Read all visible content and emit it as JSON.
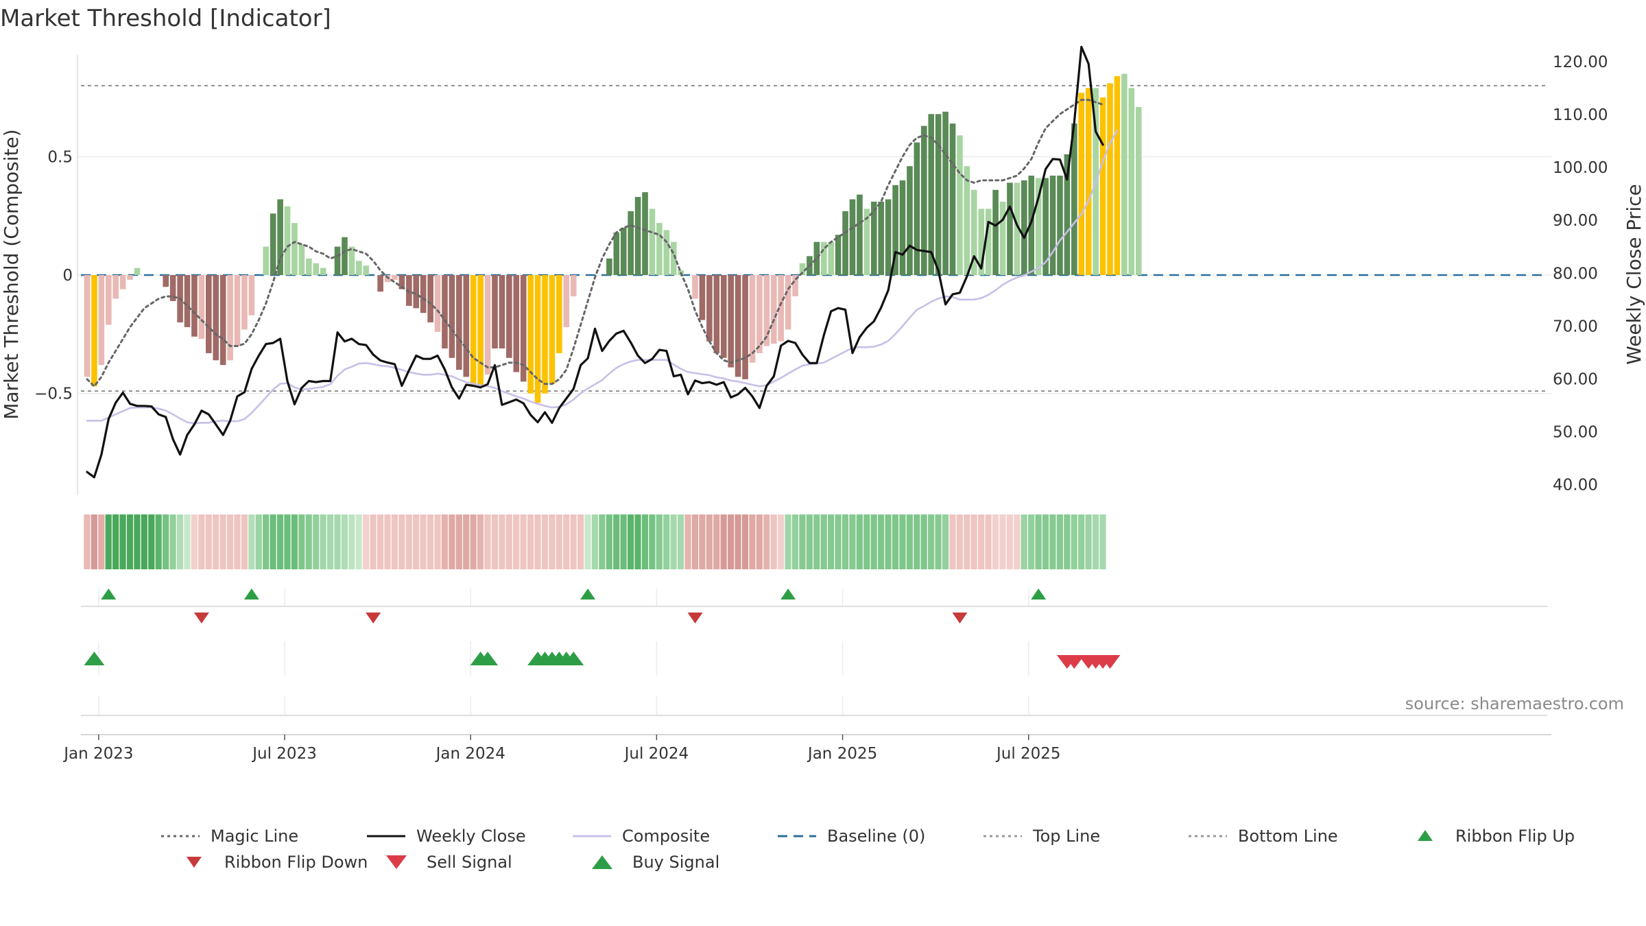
{
  "chart_data": {
    "type": "bar",
    "title": "Market Threshold [Indicator]",
    "ylabel_left": "Market Threshold (Composite)",
    "ylabel_right": "Weekly Close Price",
    "source": "source: sharemaestro.com",
    "ylim_left": [
      -0.93,
      0.93
    ],
    "ylim_right": [
      38.0,
      121.3
    ],
    "left_ticks": [
      {
        "value": 0.5,
        "label": "0.5"
      },
      {
        "value": 0,
        "label": "0"
      },
      {
        "value": -0.5,
        "label": "−0.5"
      }
    ],
    "right_ticks": [
      {
        "value": 40,
        "label": "40.00"
      },
      {
        "value": 50,
        "label": "50.00"
      },
      {
        "value": 60,
        "label": "60.00"
      },
      {
        "value": 70,
        "label": "70.00"
      },
      {
        "value": 80,
        "label": "80.00"
      },
      {
        "value": 90,
        "label": "90.00"
      },
      {
        "value": 100,
        "label": "100.00"
      },
      {
        "value": 110,
        "label": "110.00"
      },
      {
        "value": 120,
        "label": "120.00"
      }
    ],
    "x_ticks": [
      {
        "week": 2,
        "label": "Jan 2023"
      },
      {
        "week": 28,
        "label": "Jul 2023"
      },
      {
        "week": 54,
        "label": "Jan 2024"
      },
      {
        "week": 80,
        "label": "Jul 2024"
      },
      {
        "week": 106,
        "label": "Jan 2025"
      },
      {
        "week": 132,
        "label": "Jul 2025"
      }
    ],
    "top_line": 0.8,
    "bottom_line": -0.49,
    "baseline": 0,
    "bar_colors": {
      "dark_green": "#5a8a56",
      "light_green": "#a8d5a2",
      "dark_red": "#a06a66",
      "light_red": "#e9b9b5",
      "gold": "#fcc200"
    },
    "composite_bars": {
      "values": [
        -0.43,
        -0.47,
        -0.38,
        -0.21,
        -0.1,
        -0.06,
        -0.02,
        0.03,
        0,
        0,
        0,
        -0.05,
        -0.11,
        -0.2,
        -0.22,
        -0.26,
        -0.27,
        -0.33,
        -0.36,
        -0.38,
        -0.36,
        -0.3,
        -0.23,
        -0.17,
        0,
        0.12,
        0.26,
        0.32,
        0.29,
        0.22,
        0.13,
        0.07,
        0.05,
        0.03,
        0,
        0.12,
        0.16,
        0.12,
        0.06,
        0.04,
        0,
        -0.07,
        -0.03,
        -0.02,
        -0.06,
        -0.13,
        -0.14,
        -0.16,
        -0.2,
        -0.24,
        -0.31,
        -0.35,
        -0.4,
        -0.43,
        -0.47,
        -0.47,
        -0.42,
        -0.31,
        -0.31,
        -0.35,
        -0.41,
        -0.45,
        -0.5,
        -0.54,
        -0.5,
        -0.46,
        -0.33,
        -0.22,
        -0.09,
        0,
        0,
        0,
        0,
        0.07,
        0.18,
        0.2,
        0.27,
        0.33,
        0.35,
        0.28,
        0.22,
        0.19,
        0.14,
        0.02,
        0,
        -0.1,
        -0.19,
        -0.28,
        -0.33,
        -0.35,
        -0.39,
        -0.43,
        -0.44,
        -0.37,
        -0.33,
        -0.3,
        -0.29,
        -0.28,
        -0.23,
        -0.09,
        0.05,
        0.08,
        0.14,
        0.14,
        0.14,
        0.17,
        0.27,
        0.32,
        0.34,
        0.28,
        0.31,
        0.31,
        0.32,
        0.38,
        0.4,
        0.46,
        0.56,
        0.63,
        0.68,
        0.68,
        0.69,
        0.64,
        0.59,
        0.46,
        0.36,
        0.28,
        0.28,
        0.36,
        0.31,
        0.39,
        0.39,
        0.4,
        0.42,
        0.41,
        0.41,
        0.42,
        0.42,
        0.51,
        0.64,
        0.77,
        0.79,
        0.79,
        0.75,
        0.81,
        0.84,
        0.85,
        0.79,
        0.71
      ],
      "colors": [
        "lr",
        "g",
        "lr",
        "lr",
        "lr",
        "lr",
        "lr",
        "lg",
        "lg",
        "lr",
        "lr",
        "dr",
        "dr",
        "dr",
        "dr",
        "dr",
        "lr",
        "dr",
        "dr",
        "dr",
        "lr",
        "lr",
        "lr",
        "lr",
        "lr",
        "lg",
        "dg",
        "dg",
        "lg",
        "lg",
        "lg",
        "lg",
        "lg",
        "lg",
        "lg",
        "dg",
        "dg",
        "lg",
        "lg",
        "lg",
        "lg",
        "dr",
        "lr",
        "lr",
        "dr",
        "dr",
        "dr",
        "dr",
        "dr",
        "lr",
        "dr",
        "dr",
        "dr",
        "dr",
        "g",
        "g",
        "lr",
        "dr",
        "dr",
        "dr",
        "dr",
        "dr",
        "g",
        "g",
        "g",
        "g",
        "g",
        "lr",
        "lr",
        "lr",
        "lr",
        "lr",
        "lr",
        "dg",
        "dg",
        "dg",
        "dg",
        "dg",
        "dg",
        "lg",
        "lg",
        "lg",
        "lg",
        "lg",
        "lg",
        "lr",
        "dr",
        "dr",
        "dr",
        "dr",
        "dr",
        "dr",
        "dr",
        "lr",
        "lr",
        "lr",
        "lr",
        "lr",
        "lr",
        "lr",
        "lg",
        "dg",
        "dg",
        "lg",
        "lg",
        "dg",
        "dg",
        "dg",
        "dg",
        "lg",
        "dg",
        "dg",
        "dg",
        "dg",
        "dg",
        "dg",
        "dg",
        "dg",
        "dg",
        "dg",
        "dg",
        "dg",
        "lg",
        "lg",
        "lg",
        "lg",
        "lg",
        "dg",
        "lg",
        "dg",
        "lg",
        "dg",
        "dg",
        "lg",
        "dg",
        "dg",
        "dg",
        "dg",
        "dg",
        "g",
        "g",
        "lg",
        "g",
        "g",
        "g",
        "lg",
        "lg",
        "lg"
      ]
    },
    "series": [
      {
        "name": "Magic Line",
        "axis": "left",
        "color": "#666666",
        "values": [
          -0.44,
          -0.47,
          -0.43,
          -0.37,
          -0.32,
          -0.27,
          -0.22,
          -0.18,
          -0.14,
          -0.12,
          -0.1,
          -0.09,
          -0.09,
          -0.1,
          -0.13,
          -0.16,
          -0.19,
          -0.22,
          -0.25,
          -0.27,
          -0.3,
          -0.3,
          -0.29,
          -0.25,
          -0.19,
          -0.12,
          -0.03,
          0.07,
          0.12,
          0.14,
          0.13,
          0.12,
          0.1,
          0.09,
          0.07,
          0.08,
          0.1,
          0.11,
          0.1,
          0.09,
          0.06,
          0.02,
          -0.01,
          -0.03,
          -0.05,
          -0.07,
          -0.08,
          -0.1,
          -0.12,
          -0.15,
          -0.19,
          -0.23,
          -0.27,
          -0.31,
          -0.35,
          -0.37,
          -0.39,
          -0.39,
          -0.38,
          -0.37,
          -0.37,
          -0.38,
          -0.41,
          -0.44,
          -0.46,
          -0.46,
          -0.44,
          -0.4,
          -0.31,
          -0.21,
          -0.11,
          -0.01,
          0.07,
          0.13,
          0.18,
          0.2,
          0.21,
          0.2,
          0.19,
          0.18,
          0.17,
          0.14,
          0.09,
          0.01,
          -0.06,
          -0.15,
          -0.22,
          -0.28,
          -0.33,
          -0.36,
          -0.37,
          -0.36,
          -0.35,
          -0.33,
          -0.3,
          -0.26,
          -0.19,
          -0.12,
          -0.06,
          -0.02,
          0.01,
          0.04,
          0.07,
          0.11,
          0.14,
          0.16,
          0.18,
          0.2,
          0.22,
          0.24,
          0.27,
          0.31,
          0.38,
          0.44,
          0.5,
          0.55,
          0.58,
          0.59,
          0.58,
          0.55,
          0.51,
          0.47,
          0.43,
          0.4,
          0.39,
          0.4,
          0.4,
          0.4,
          0.4,
          0.41,
          0.42,
          0.45,
          0.49,
          0.56,
          0.62,
          0.65,
          0.68,
          0.7,
          0.72,
          0.74,
          0.74,
          0.73,
          0.72
        ],
        "x_start": 0
      },
      {
        "name": "Weekly Close",
        "axis": "right",
        "color": "#111111",
        "values": [
          42.4,
          41.4,
          45.7,
          52.4,
          55.5,
          57.4,
          55.3,
          54.9,
          54.9,
          54.8,
          53.3,
          52.8,
          48.6,
          45.7,
          49.4,
          51.4,
          54.0,
          53.3,
          51.4,
          49.4,
          52.1,
          56.7,
          57.5,
          61.9,
          64.4,
          66.6,
          66.8,
          67.6,
          59.6,
          55.2,
          58.3,
          59.6,
          59.4,
          59.6,
          59.6,
          68.8,
          67.1,
          67.6,
          66.6,
          66.4,
          64.6,
          63.5,
          63.1,
          62.8,
          58.7,
          61.6,
          64.4,
          63.8,
          63.8,
          64.4,
          61.8,
          58.4,
          56.3,
          58.9,
          58.7,
          58.4,
          59.0,
          62.6,
          55.1,
          55.6,
          56.1,
          55.4,
          53.2,
          51.8,
          53.7,
          51.7,
          54.5,
          56.3,
          58.1,
          62.6,
          63.9,
          69.5,
          65.3,
          67.2,
          68.6,
          69.1,
          66.9,
          64.4,
          63.0,
          63.8,
          65.5,
          65.3,
          60.5,
          60.8,
          57.1,
          59.7,
          59.2,
          59.4,
          58.9,
          59.4,
          56.5,
          57.1,
          58.3,
          56.7,
          54.5,
          58.7,
          60.5,
          66.3,
          67.2,
          66.8,
          64.6,
          63.0,
          63.0,
          68.3,
          72.8,
          73.4,
          73.1,
          64.9,
          67.9,
          69.7,
          70.9,
          73.5,
          76.8,
          84.0,
          83.5,
          85.2,
          84.4,
          84.2,
          84.0,
          80.5,
          74.1,
          76.0,
          76.3,
          79.4,
          83.2,
          80.9,
          89.7,
          89.0,
          90.1,
          92.6,
          89.1,
          86.7,
          89.7,
          94.3,
          99.7,
          101.6,
          101.5,
          97.7,
          108.5,
          122.8,
          119.6,
          106.8,
          104.3
        ],
        "x_start": 0
      },
      {
        "name": "Composite",
        "axis": "right",
        "color": "#c8bfe8",
        "values": [
          52.1,
          52.1,
          52.1,
          52.7,
          53.3,
          53.9,
          54.5,
          54.6,
          54.6,
          54.6,
          54.4,
          54.0,
          53.3,
          52.5,
          51.8,
          51.6,
          51.7,
          51.7,
          52.0,
          52.1,
          52.0,
          52.0,
          52.4,
          53.6,
          55.0,
          56.5,
          58.0,
          59.1,
          59.2,
          58.4,
          58.0,
          58.1,
          58.3,
          58.5,
          59.0,
          60.6,
          61.8,
          62.3,
          62.9,
          63.0,
          62.8,
          62.5,
          62.4,
          62.1,
          61.7,
          61.3,
          61.0,
          60.8,
          60.8,
          61.0,
          60.8,
          60.5,
          59.9,
          59.4,
          59.1,
          58.8,
          58.6,
          58.3,
          57.7,
          57.2,
          56.7,
          56.3,
          55.7,
          55.3,
          54.9,
          54.6,
          54.7,
          55.2,
          56.1,
          57.3,
          58.2,
          59.0,
          59.8,
          61.0,
          62.1,
          62.8,
          63.3,
          63.6,
          63.6,
          63.6,
          63.6,
          63.6,
          62.7,
          61.9,
          61.3,
          61.1,
          60.9,
          60.7,
          60.3,
          60.1,
          59.7,
          59.5,
          59.2,
          58.9,
          58.6,
          58.8,
          59.5,
          60.2,
          61.0,
          61.8,
          62.5,
          62.8,
          62.9,
          63.1,
          63.8,
          64.5,
          65.2,
          65.9,
          66.0,
          66.0,
          66.1,
          66.5,
          67.2,
          68.5,
          70.0,
          71.6,
          73.1,
          73.8,
          74.6,
          75.2,
          75.6,
          75.5,
          75.0,
          75.0,
          75.0,
          75.3,
          75.9,
          76.8,
          77.8,
          78.6,
          79.2,
          79.6,
          80.3,
          81.0,
          82.1,
          84.0,
          86.2,
          87.8,
          89.5,
          91.2,
          93.7,
          97.1,
          101.2,
          104.6,
          107.0
        ],
        "x_start": 0
      }
    ],
    "ribbon": {
      "colors": [
        "#e9b9b5",
        "#d69a96",
        "#e2ada9",
        "#49a85a",
        "#49a85a",
        "#49a85a",
        "#49a85a",
        "#49a85a",
        "#49a85a",
        "#49a85a",
        "#5bb36b",
        "#75c283",
        "#92d09c",
        "#b0ddb6",
        "#c8e8cc",
        "#f2d0cd",
        "#eec5c1",
        "#eec5c1",
        "#eec5c1",
        "#eec5c1",
        "#eec5c1",
        "#eec5c1",
        "#eec5c1",
        "#b3deb9",
        "#9bd3a4",
        "#7fc68b",
        "#6bbd79",
        "#6bbd79",
        "#6bbd79",
        "#6bbd79",
        "#7fc68b",
        "#86c991",
        "#92d09c",
        "#a0d6a9",
        "#a6d8ae",
        "#a6d8ae",
        "#b0ddb6",
        "#bde3c2",
        "#c8e8cc",
        "#f2d0cd",
        "#eec5c1",
        "#eec5c1",
        "#eec5c1",
        "#eec5c1",
        "#eec5c1",
        "#eec5c1",
        "#eec5c1",
        "#eec5c1",
        "#eec5c1",
        "#eec5c1",
        "#e5b3af",
        "#dfa9a5",
        "#dfa9a5",
        "#dfa9a5",
        "#dfa9a5",
        "#e5b3af",
        "#eec5c1",
        "#eec5c1",
        "#eec5c1",
        "#eec5c1",
        "#eec5c1",
        "#eec5c1",
        "#eec5c1",
        "#eec5c1",
        "#eec5c1",
        "#eec5c1",
        "#eec5c1",
        "#eec5c1",
        "#eec5c1",
        "#eec5c1",
        "#c8e8cc",
        "#a6d8ae",
        "#86c991",
        "#75c283",
        "#6bbd79",
        "#6bbd79",
        "#5bb36b",
        "#5bb36b",
        "#6bbd79",
        "#75c283",
        "#86c991",
        "#92d09c",
        "#a6d8ae",
        "#a6d8ae",
        "#e5b3af",
        "#dfa9a5",
        "#dfa9a5",
        "#dfa9a5",
        "#dfa9a5",
        "#d69a96",
        "#d69a96",
        "#d69a96",
        "#d69a96",
        "#dfa9a5",
        "#dfa9a5",
        "#e5b3af",
        "#eec5c1",
        "#f2d0cd",
        "#a0d6a9",
        "#92d09c",
        "#86c991",
        "#86c991",
        "#86c991",
        "#86c991",
        "#86c991",
        "#86c991",
        "#86c991",
        "#86c991",
        "#7fc68b",
        "#7fc68b",
        "#7fc68b",
        "#7fc68b",
        "#7fc68b",
        "#7fc68b",
        "#7fc68b",
        "#7fc68b",
        "#7fc68b",
        "#7fc68b",
        "#86c991",
        "#86c991",
        "#92d09c",
        "#eec5c1",
        "#eec5c1",
        "#eec5c1",
        "#eec5c1",
        "#eec5c1",
        "#eec5c1",
        "#f2d0cd",
        "#f2d0cd",
        "#f2d0cd",
        "#f2d0cd",
        "#9bd3a4",
        "#92d09c",
        "#86c991",
        "#86c991",
        "#86c991",
        "#86c991",
        "#86c991",
        "#92d09c",
        "#92d09c",
        "#9bd3a4",
        "#a6d8ae",
        "#a6d8ae"
      ]
    },
    "markers": {
      "ribbon_flip_up": [
        3,
        23,
        70,
        98,
        133
      ],
      "ribbon_flip_down": [
        16,
        40,
        85,
        122
      ],
      "buy_signal": [
        1,
        55,
        56,
        63,
        64,
        65,
        66,
        67,
        68
      ],
      "sell_signal": [
        137,
        138,
        140,
        141,
        142,
        143
      ]
    },
    "weeks": 145,
    "legend": [
      {
        "label": "Magic Line",
        "kind": "dotted-line",
        "color": "#666666"
      },
      {
        "label": "Weekly Close",
        "kind": "solid-line",
        "color": "#111111"
      },
      {
        "label": "Composite",
        "kind": "solid-line",
        "color": "#c8bfe8"
      },
      {
        "label": "Baseline (0)",
        "kind": "dashed-line",
        "color": "#2a6f9e"
      },
      {
        "label": "Top Line",
        "kind": "dotted-line",
        "color": "#999999"
      },
      {
        "label": "Bottom Line",
        "kind": "dotted-line",
        "color": "#999999"
      },
      {
        "label": "Ribbon Flip Up",
        "kind": "triangle-up",
        "color": "#2e9e46"
      },
      {
        "label": "Ribbon Flip Down",
        "kind": "triangle-down",
        "color": "#c73a3a"
      },
      {
        "label": "Sell Signal",
        "kind": "triangle-down-big",
        "color": "#dc3c48"
      },
      {
        "label": "Buy Signal",
        "kind": "triangle-up-big",
        "color": "#2e9e46"
      }
    ]
  }
}
